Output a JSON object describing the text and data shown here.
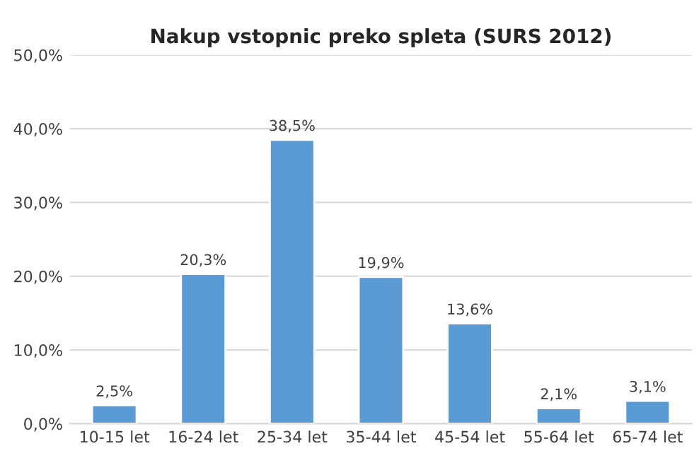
{
  "chart_data": {
    "type": "bar",
    "title": "Nakup vstopnic preko spleta (SURS 2012)",
    "categories": [
      "10-15 let",
      "16-24 let",
      "25-34 let",
      "35-44 let",
      "45-54 let",
      "55-64 let",
      "65-74 let"
    ],
    "values": [
      2.5,
      20.3,
      38.5,
      19.9,
      13.6,
      2.1,
      3.1
    ],
    "value_labels": [
      "2,5%",
      "20,3%",
      "38,5%",
      "19,9%",
      "13,6%",
      "2,1%",
      "3,1%"
    ],
    "color": "#5b9bd5",
    "ylim": [
      0,
      50
    ],
    "yticks": [
      {
        "value": 0,
        "label": "0,0%"
      },
      {
        "value": 10,
        "label": "10,0%"
      },
      {
        "value": 20,
        "label": "20,0%"
      },
      {
        "value": 30,
        "label": "30,0%"
      },
      {
        "value": 40,
        "label": "40,0%"
      },
      {
        "value": 50,
        "label": "50,0%"
      }
    ],
    "grid": "y",
    "legend": false
  }
}
